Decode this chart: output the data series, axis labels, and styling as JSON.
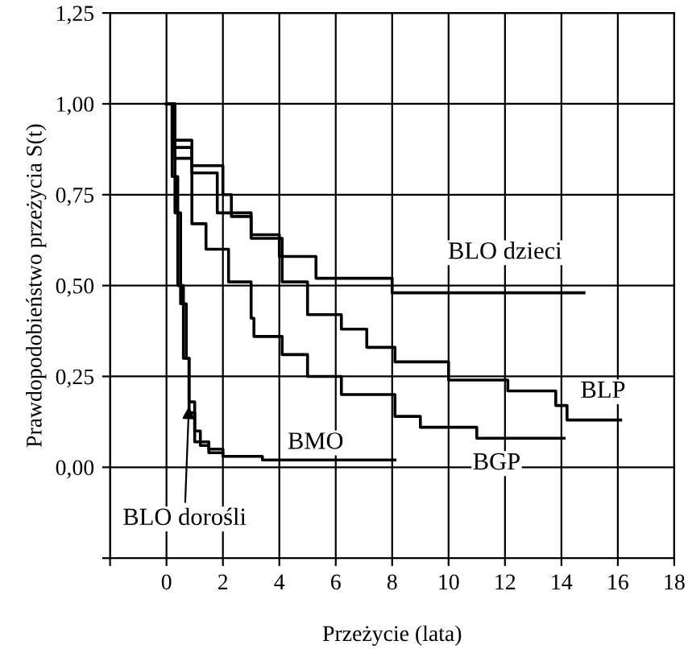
{
  "chart_data": {
    "type": "step",
    "xlabel": "Przeżycie (lata)",
    "ylabel": "Prawdopodobieństwo przeżycia S(t)",
    "xlim": [
      -2,
      18
    ],
    "ylim": [
      -0.25,
      1.25
    ],
    "xticks": [
      {
        "value": -2,
        "label": null
      },
      0,
      2,
      4,
      6,
      8,
      10,
      12,
      14,
      16,
      18
    ],
    "yticks": [
      {
        "value": -0.25,
        "label": null
      },
      {
        "value": 0,
        "label": "0,00"
      },
      {
        "value": 0.25,
        "label": "0,25"
      },
      {
        "value": 0.5,
        "label": "0,50"
      },
      {
        "value": 0.75,
        "label": "0,75"
      },
      {
        "value": 1,
        "label": "1,00"
      },
      {
        "value": 1.25,
        "label": "1,25"
      }
    ],
    "grid": true,
    "legend": false,
    "marker": "none",
    "line_style": "solid",
    "series": [
      {
        "color": "#000000",
        "x": [
          0,
          0.2,
          0.9,
          2,
          2.3,
          3,
          4,
          5.3,
          8,
          14.8
        ],
        "values": [
          1,
          0.9,
          0.83,
          0.75,
          0.69,
          0.64,
          0.58,
          0.52,
          0.48,
          0.48
        ]
      },
      {
        "color": "#000000",
        "x": [
          0,
          0.3,
          0.9,
          1.8,
          3,
          4.1,
          5,
          6.2,
          7.1,
          8.1,
          10,
          12.1,
          13.8,
          14.2,
          16.1
        ],
        "values": [
          1,
          0.88,
          0.81,
          0.7,
          0.63,
          0.51,
          0.42,
          0.38,
          0.33,
          0.29,
          0.24,
          0.21,
          0.17,
          0.13,
          0.13
        ]
      },
      {
        "color": "#000000",
        "x": [
          0,
          0.3,
          0.9,
          1.4,
          2.2,
          3,
          3.1,
          4.1,
          5,
          6.2,
          8.1,
          9,
          11,
          14.1
        ],
        "values": [
          1,
          0.85,
          0.67,
          0.6,
          0.51,
          0.41,
          0.36,
          0.31,
          0.25,
          0.2,
          0.14,
          0.11,
          0.08,
          0.08
        ]
      },
      {
        "color": "#000000",
        "x": [
          0,
          0.3,
          0.5,
          0.7,
          0.8,
          1,
          1.5,
          2,
          3.4,
          8.1
        ],
        "values": [
          1,
          0.7,
          0.45,
          0.3,
          0.15,
          0.07,
          0.05,
          0.03,
          0.02,
          0.02
        ]
      },
      {
        "color": "#000000",
        "x": [
          0,
          0.2,
          0.4,
          0.6,
          0.8,
          1,
          1.2,
          1.5,
          2
        ],
        "values": [
          1,
          0.8,
          0.5,
          0.3,
          0.18,
          0.1,
          0.06,
          0.04,
          0.04
        ]
      }
    ],
    "annotations": [
      {
        "text": "BLO dzieci",
        "x": 12,
        "y": 0.5
      },
      {
        "text": "BLP",
        "x": 14.2,
        "y": 0.13
      },
      {
        "text": "BGP",
        "x": 12.1,
        "y": 0.08
      },
      {
        "text": "BMO",
        "x": 8.1,
        "y": 0.02
      },
      {
        "text": "BLO dorośli",
        "x": 0.8,
        "y": 0.18
      }
    ]
  }
}
